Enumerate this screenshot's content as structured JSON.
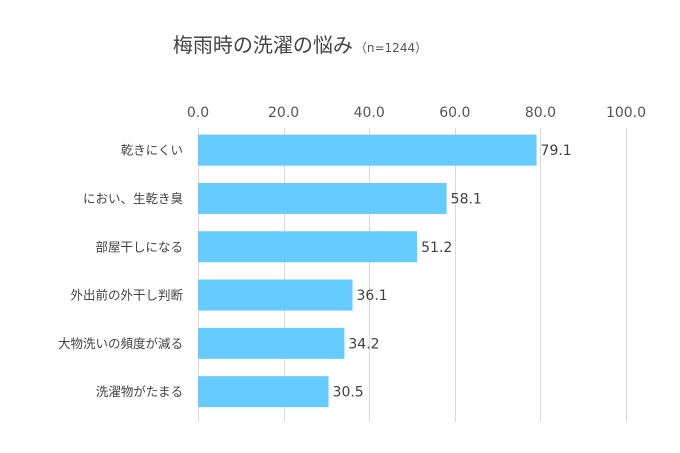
{
  "chart_data": {
    "type": "bar",
    "orientation": "horizontal",
    "title": "梅雨時の洗濯の悩み",
    "subtitle": "（n=1244）",
    "categories": [
      "乾きにくい",
      "におい、生乾き臭",
      "部屋干しになる",
      "外出前の外干し判断",
      "大物洗いの頻度が減る",
      "洗濯物がたまる"
    ],
    "values": [
      79.1,
      58.1,
      51.2,
      36.1,
      34.2,
      30.5
    ],
    "value_labels": [
      "79.1",
      "58.1",
      "51.2",
      "36.1",
      "34.2",
      "30.5"
    ],
    "xlim": [
      0,
      100
    ],
    "x_ticks": [
      0,
      20,
      40,
      60,
      80,
      100
    ],
    "x_tick_labels": [
      "0.0",
      "20.0",
      "40.0",
      "60.0",
      "80.0",
      "100.0"
    ],
    "axis_position": "top",
    "grid": true,
    "legend": "none",
    "bar_color": "#66ccff"
  }
}
